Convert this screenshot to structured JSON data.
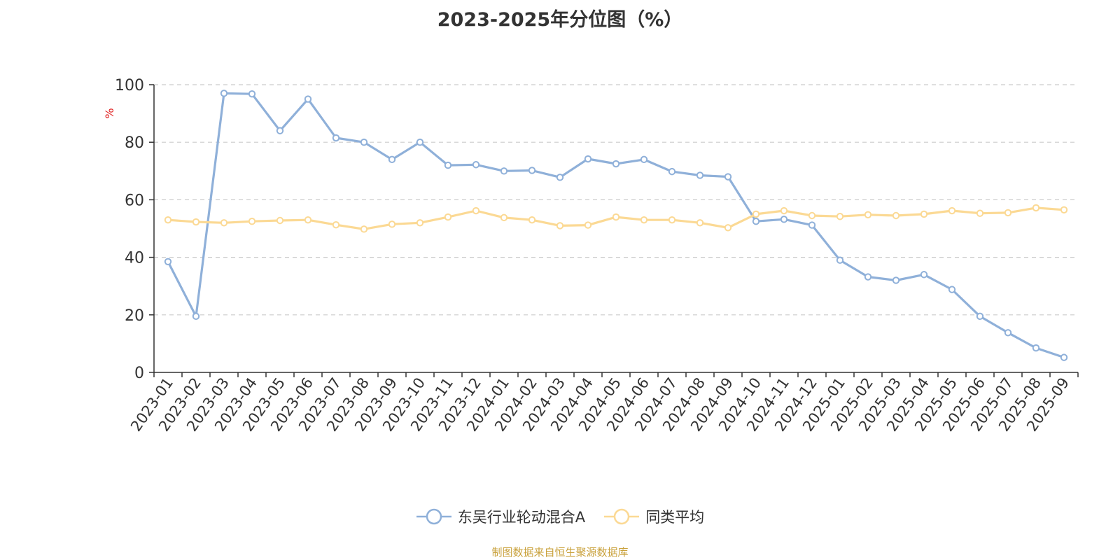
{
  "title": "2023-2025年分位图（%）",
  "source": "制图数据来自恒生聚源数据库",
  "chart_data": {
    "type": "line",
    "title": "2023-2025年分位图（%）",
    "ylabel": "%",
    "xlabel": "",
    "ylim": [
      0,
      100
    ],
    "yticks": [
      0,
      20,
      40,
      60,
      80,
      100
    ],
    "grid": true,
    "legend_position": "bottom",
    "categories": [
      "2023-01",
      "2023-02",
      "2023-03",
      "2023-04",
      "2023-05",
      "2023-06",
      "2023-07",
      "2023-08",
      "2023-09",
      "2023-10",
      "2023-11",
      "2023-12",
      "2024-01",
      "2024-02",
      "2024-03",
      "2024-04",
      "2024-05",
      "2024-06",
      "2024-07",
      "2024-08",
      "2024-09",
      "2024-10",
      "2024-11",
      "2024-12",
      "2025-01",
      "2025-02",
      "2025-03",
      "2025-04",
      "2025-05",
      "2025-06",
      "2025-07",
      "2025-08",
      "2025-09"
    ],
    "series": [
      {
        "name": "东吴行业轮动混合A",
        "color": "#8fb0d9",
        "values": [
          38.5,
          19.5,
          97.0,
          96.8,
          84.0,
          95.0,
          81.5,
          80.0,
          74.0,
          80.0,
          72.0,
          72.2,
          70.0,
          70.2,
          67.8,
          74.2,
          72.5,
          74.0,
          69.8,
          68.5,
          68.0,
          52.5,
          53.2,
          51.2,
          39.0,
          33.2,
          32.0,
          34.0,
          28.8,
          19.5,
          13.8,
          8.5,
          5.2
        ]
      },
      {
        "name": "同类平均",
        "color": "#fbd994",
        "values": [
          53.0,
          52.3,
          52.0,
          52.5,
          52.8,
          53.0,
          51.3,
          49.8,
          51.5,
          52.0,
          54.0,
          56.2,
          53.8,
          53.0,
          51.0,
          51.2,
          54.0,
          53.0,
          53.0,
          52.0,
          50.3,
          55.0,
          56.2,
          54.5,
          54.2,
          54.8,
          54.5,
          55.0,
          56.2,
          55.3,
          55.5,
          57.2,
          56.5
        ]
      }
    ]
  }
}
